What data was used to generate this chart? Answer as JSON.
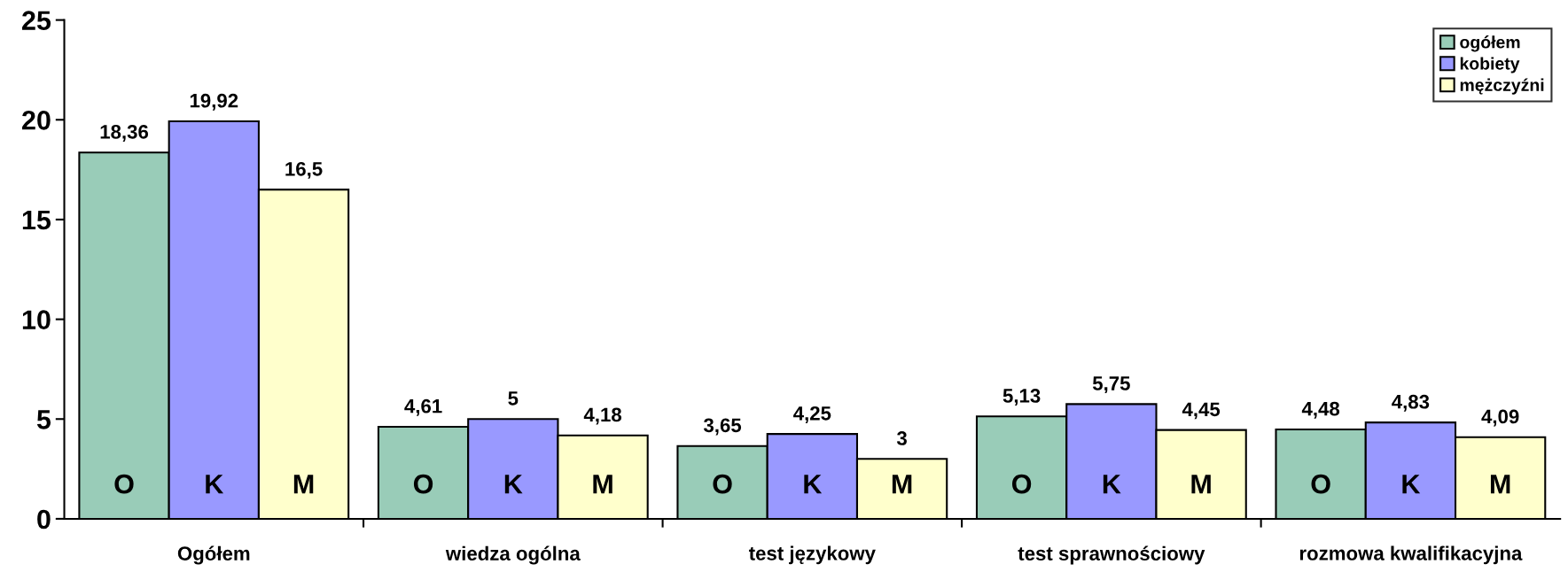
{
  "chart_data": {
    "type": "bar",
    "categories": [
      "Ogółem",
      "wiedza ogólna",
      "test językowy",
      "test sprawnościowy",
      "rozmowa kwalifikacyjna"
    ],
    "series": [
      {
        "name": "ogółem",
        "color": "#99ccb8",
        "values": [
          18.36,
          4.61,
          3.65,
          5.13,
          4.48
        ],
        "value_labels": [
          "18,36",
          "4,61",
          "3,65",
          "5,13",
          "4,48"
        ]
      },
      {
        "name": "kobiety",
        "color": "#9999ff",
        "values": [
          19.92,
          5,
          4.25,
          5.75,
          4.83
        ],
        "value_labels": [
          "19,92",
          "5",
          "4,25",
          "5,75",
          "4,83"
        ]
      },
      {
        "name": "mężczyźni",
        "color": "#ffffcc",
        "values": [
          16.5,
          4.18,
          3,
          4.45,
          4.09
        ],
        "value_labels": [
          "16,5",
          "4,18",
          "3",
          "4,45",
          "4,09"
        ]
      }
    ],
    "annotations": [
      "O",
      "K",
      "M",
      "O",
      "K",
      "M",
      "O",
      "K",
      "M",
      "O",
      "K",
      "M",
      "O",
      "K",
      "M"
    ],
    "ylim": [
      0,
      25
    ],
    "yticks": [
      0,
      5,
      10,
      15,
      20,
      25
    ],
    "grid": false,
    "legend": "top right"
  }
}
